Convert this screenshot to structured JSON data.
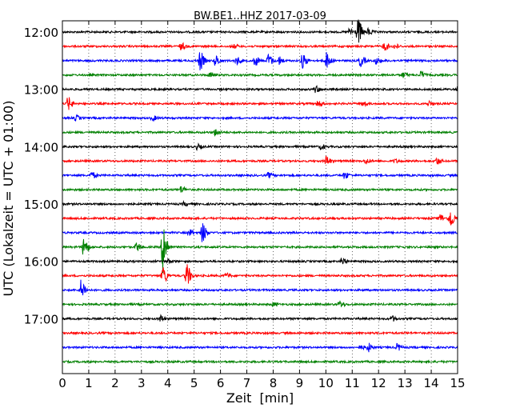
{
  "chart_data": {
    "type": "line",
    "title": "BW.BE1..HHZ 2017-03-09",
    "xlabel": "Zeit  [min]",
    "ylabel": "UTC (Lokalzeit = UTC + 01:00)",
    "xlim": [
      0,
      15
    ],
    "x_ticks": [
      "0",
      "1",
      "2",
      "3",
      "4",
      "5",
      "6",
      "7",
      "8",
      "9",
      "10",
      "11",
      "12",
      "13",
      "14",
      "15"
    ],
    "y_ticks": [
      {
        "label": "12:00",
        "row": 0
      },
      {
        "label": "13:00",
        "row": 4
      },
      {
        "label": "14:00",
        "row": 8
      },
      {
        "label": "15:00",
        "row": 12
      },
      {
        "label": "16:00",
        "row": 16
      },
      {
        "label": "17:00",
        "row": 20
      }
    ],
    "row_minutes": 15,
    "row_colors": [
      "#000000",
      "#ff0000",
      "#0000ff",
      "#008000"
    ],
    "grid": "vertical dotted",
    "traces": [
      {
        "start": "12:00",
        "events": [
          {
            "min": 11.2,
            "amp": 16
          },
          {
            "min": 10.9,
            "amp": 5
          },
          {
            "min": 11.6,
            "amp": 4
          }
        ]
      },
      {
        "start": "12:15",
        "events": [
          {
            "min": 4.5,
            "amp": 4
          },
          {
            "min": 12.2,
            "amp": 5
          },
          {
            "min": 12.6,
            "amp": 3
          },
          {
            "min": 6.5,
            "amp": 2
          }
        ]
      },
      {
        "start": "12:30",
        "events": [
          {
            "min": 5.2,
            "amp": 12
          },
          {
            "min": 5.8,
            "amp": 6
          },
          {
            "min": 6.6,
            "amp": 5
          },
          {
            "min": 7.3,
            "amp": 6
          },
          {
            "min": 7.8,
            "amp": 8
          },
          {
            "min": 8.2,
            "amp": 5
          },
          {
            "min": 9.1,
            "amp": 9
          },
          {
            "min": 10.0,
            "amp": 10
          },
          {
            "min": 11.3,
            "amp": 7
          },
          {
            "min": 11.9,
            "amp": 4
          }
        ]
      },
      {
        "start": "12:45",
        "events": [
          {
            "min": 5.6,
            "amp": 3
          },
          {
            "min": 12.9,
            "amp": 3
          },
          {
            "min": 13.6,
            "amp": 4
          }
        ]
      },
      {
        "start": "13:00",
        "events": [
          {
            "min": 9.6,
            "amp": 4
          },
          {
            "min": 15.0,
            "amp": 3
          }
        ]
      },
      {
        "start": "13:15",
        "events": [
          {
            "min": 0.2,
            "amp": 8
          },
          {
            "min": 9.7,
            "amp": 4
          },
          {
            "min": 11.4,
            "amp": 3
          },
          {
            "min": 13.9,
            "amp": 3
          }
        ]
      },
      {
        "start": "13:30",
        "events": [
          {
            "min": 0.5,
            "amp": 3
          },
          {
            "min": 3.4,
            "amp": 3
          }
        ]
      },
      {
        "start": "13:45",
        "events": [
          {
            "min": 5.8,
            "amp": 4
          }
        ]
      },
      {
        "start": "14:00",
        "events": [
          {
            "min": 5.1,
            "amp": 3
          },
          {
            "min": 9.8,
            "amp": 3
          }
        ]
      },
      {
        "start": "14:15",
        "events": [
          {
            "min": 10.0,
            "amp": 6
          },
          {
            "min": 11.5,
            "amp": 3
          },
          {
            "min": 14.2,
            "amp": 4
          },
          {
            "min": 12.6,
            "amp": 2
          }
        ]
      },
      {
        "start": "14:30",
        "events": [
          {
            "min": 1.1,
            "amp": 4
          },
          {
            "min": 7.8,
            "amp": 3
          },
          {
            "min": 10.7,
            "amp": 4
          }
        ]
      },
      {
        "start": "14:45",
        "events": [
          {
            "min": 4.5,
            "amp": 4
          }
        ]
      },
      {
        "start": "15:00",
        "events": [
          {
            "min": 4.6,
            "amp": 2
          }
        ]
      },
      {
        "start": "15:15",
        "events": [
          {
            "min": 14.7,
            "amp": 12
          },
          {
            "min": 14.3,
            "amp": 5
          }
        ]
      },
      {
        "start": "15:30",
        "events": [
          {
            "min": 5.3,
            "amp": 12
          },
          {
            "min": 4.8,
            "amp": 4
          }
        ]
      },
      {
        "start": "15:45",
        "events": [
          {
            "min": 0.8,
            "amp": 12
          },
          {
            "min": 3.8,
            "amp": 34
          },
          {
            "min": 2.8,
            "amp": 5
          }
        ]
      },
      {
        "start": "16:00",
        "events": [
          {
            "min": 10.6,
            "amp": 4
          },
          {
            "min": 4.0,
            "amp": 2
          }
        ]
      },
      {
        "start": "16:15",
        "events": [
          {
            "min": 4.7,
            "amp": 14
          },
          {
            "min": 3.8,
            "amp": 12
          },
          {
            "min": 6.2,
            "amp": 3
          }
        ]
      },
      {
        "start": "16:30",
        "events": [
          {
            "min": 0.7,
            "amp": 12
          }
        ]
      },
      {
        "start": "16:45",
        "events": [
          {
            "min": 10.5,
            "amp": 4
          },
          {
            "min": 8.0,
            "amp": 2
          }
        ]
      },
      {
        "start": "17:00",
        "events": [
          {
            "min": 3.7,
            "amp": 4
          },
          {
            "min": 12.5,
            "amp": 3
          }
        ]
      },
      {
        "start": "17:15",
        "events": []
      },
      {
        "start": "17:30",
        "events": [
          {
            "min": 11.6,
            "amp": 5
          },
          {
            "min": 12.7,
            "amp": 4
          },
          {
            "min": 11.3,
            "amp": 2
          }
        ]
      },
      {
        "start": "17:45",
        "events": []
      }
    ]
  }
}
